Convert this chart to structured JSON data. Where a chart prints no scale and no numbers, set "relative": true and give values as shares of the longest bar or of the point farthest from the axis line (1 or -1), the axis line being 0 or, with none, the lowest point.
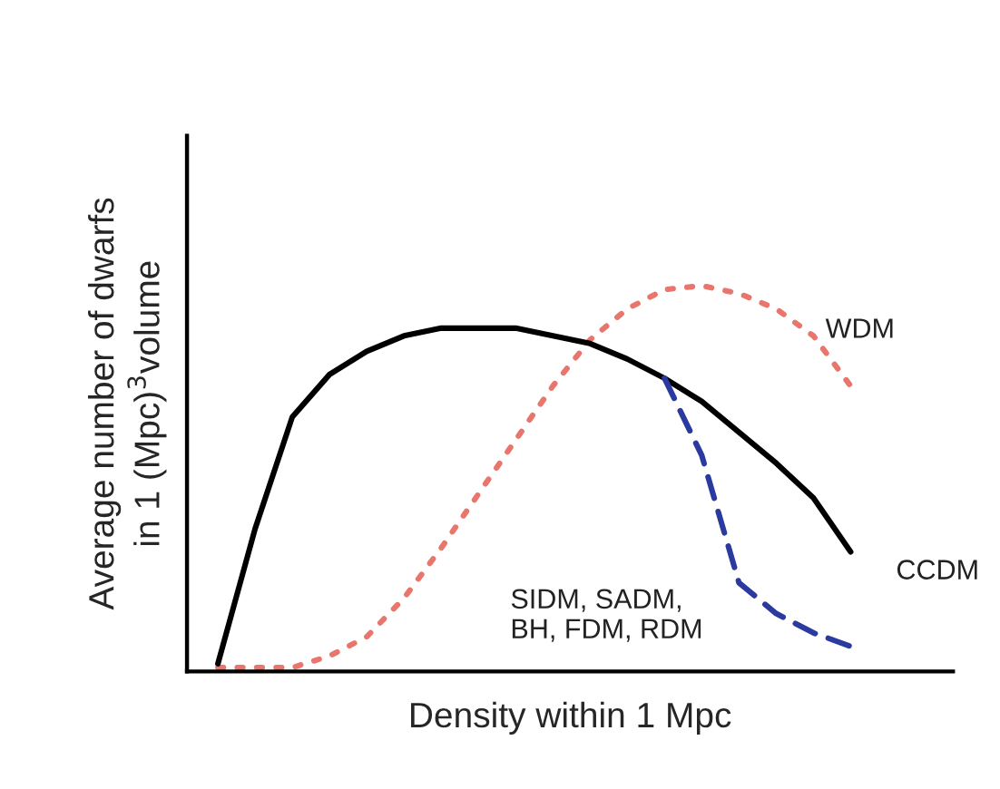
{
  "chart_data": {
    "type": "line",
    "relative": true,
    "xlabel": "Density within 1 Mpc",
    "ylabel": "Average number of dwarfs\nin 1 (Mpc)$^{3}$volume",
    "categories": [
      null,
      null,
      null,
      null,
      null,
      null,
      null,
      null,
      null,
      null,
      null,
      null,
      null,
      null,
      null,
      null,
      null,
      null
    ],
    "series": [
      {
        "name": "WDM",
        "color": "#e8766c",
        "line_style": "dotted",
        "values": [
          0.01,
          0.01,
          0.01,
          0.04,
          0.09,
          0.19,
          0.32,
          0.46,
          0.6,
          0.74,
          0.86,
          0.94,
          0.99,
          1.0,
          0.98,
          0.94,
          0.87,
          0.74
        ]
      },
      {
        "name": "CCDM",
        "color": "#000000",
        "line_style": "solid",
        "values": [
          0.02,
          0.37,
          0.66,
          0.77,
          0.83,
          0.87,
          0.89,
          0.89,
          0.89,
          0.87,
          0.85,
          0.81,
          0.76,
          0.7,
          0.62,
          0.54,
          0.45,
          0.31
        ]
      },
      {
        "name": "SIDM, SADM,\nBH, FDM, RDM",
        "color": "#2b3a9e",
        "line_style": "dashed",
        "values": [
          null,
          null,
          null,
          null,
          null,
          null,
          null,
          null,
          null,
          null,
          null,
          null,
          0.76,
          0.56,
          0.23,
          0.15,
          0.1,
          0.065
        ]
      }
    ]
  }
}
